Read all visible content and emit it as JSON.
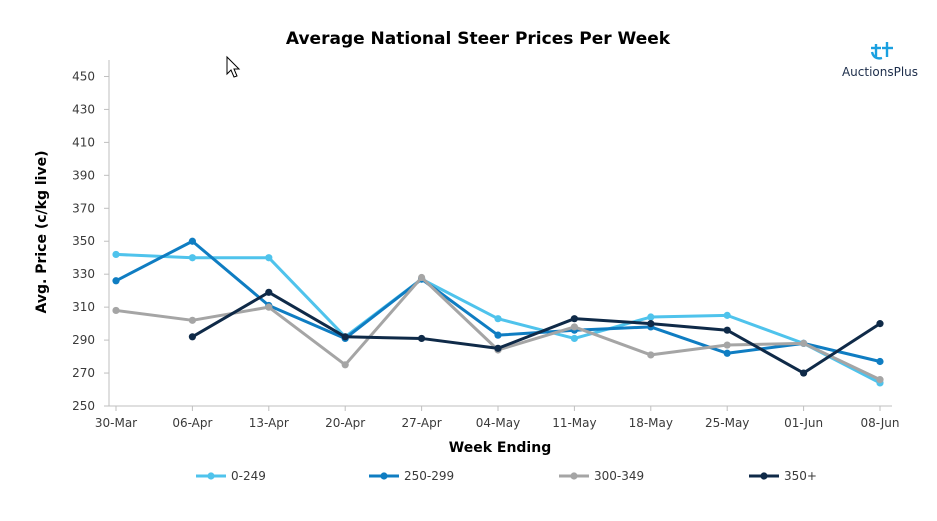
{
  "chart_data": {
    "type": "line",
    "title": "Average National Steer Prices Per Week",
    "xlabel": "Week Ending",
    "ylabel": "Avg. Price (c/kg live)",
    "categories": [
      "30-Mar",
      "06-Apr",
      "13-Apr",
      "20-Apr",
      "27-Apr",
      "04-May",
      "11-May",
      "18-May",
      "25-May",
      "01-Jun",
      "08-Jun"
    ],
    "ylim": [
      250,
      460
    ],
    "yticks": [
      250,
      270,
      290,
      310,
      330,
      350,
      370,
      390,
      410,
      430,
      450
    ],
    "grid": false,
    "legend_position": "bottom",
    "series": [
      {
        "name": "0-249",
        "color": "#4fc3ec",
        "values": [
          342,
          340,
          340,
          292,
          327,
          303,
          291,
          304,
          305,
          288,
          264
        ]
      },
      {
        "name": "250-299",
        "color": "#0f7dc2",
        "values": [
          326,
          350,
          311,
          291,
          327,
          293,
          296,
          298,
          282,
          288,
          277
        ]
      },
      {
        "name": "300-349",
        "color": "#a5a5a5",
        "values": [
          308,
          302,
          310,
          275,
          328,
          284,
          298,
          281,
          287,
          288,
          266
        ]
      },
      {
        "name": "350+",
        "color": "#0f2a48",
        "values": [
          null,
          292,
          319,
          292,
          291,
          285,
          303,
          300,
          296,
          270,
          300
        ]
      }
    ]
  },
  "logo": {
    "text": "AuctionsPlus",
    "color": "#1aa0e0",
    "icon": "auctionsplus-logo-icon"
  },
  "cursor": {
    "icon": "mouse-pointer-icon"
  }
}
